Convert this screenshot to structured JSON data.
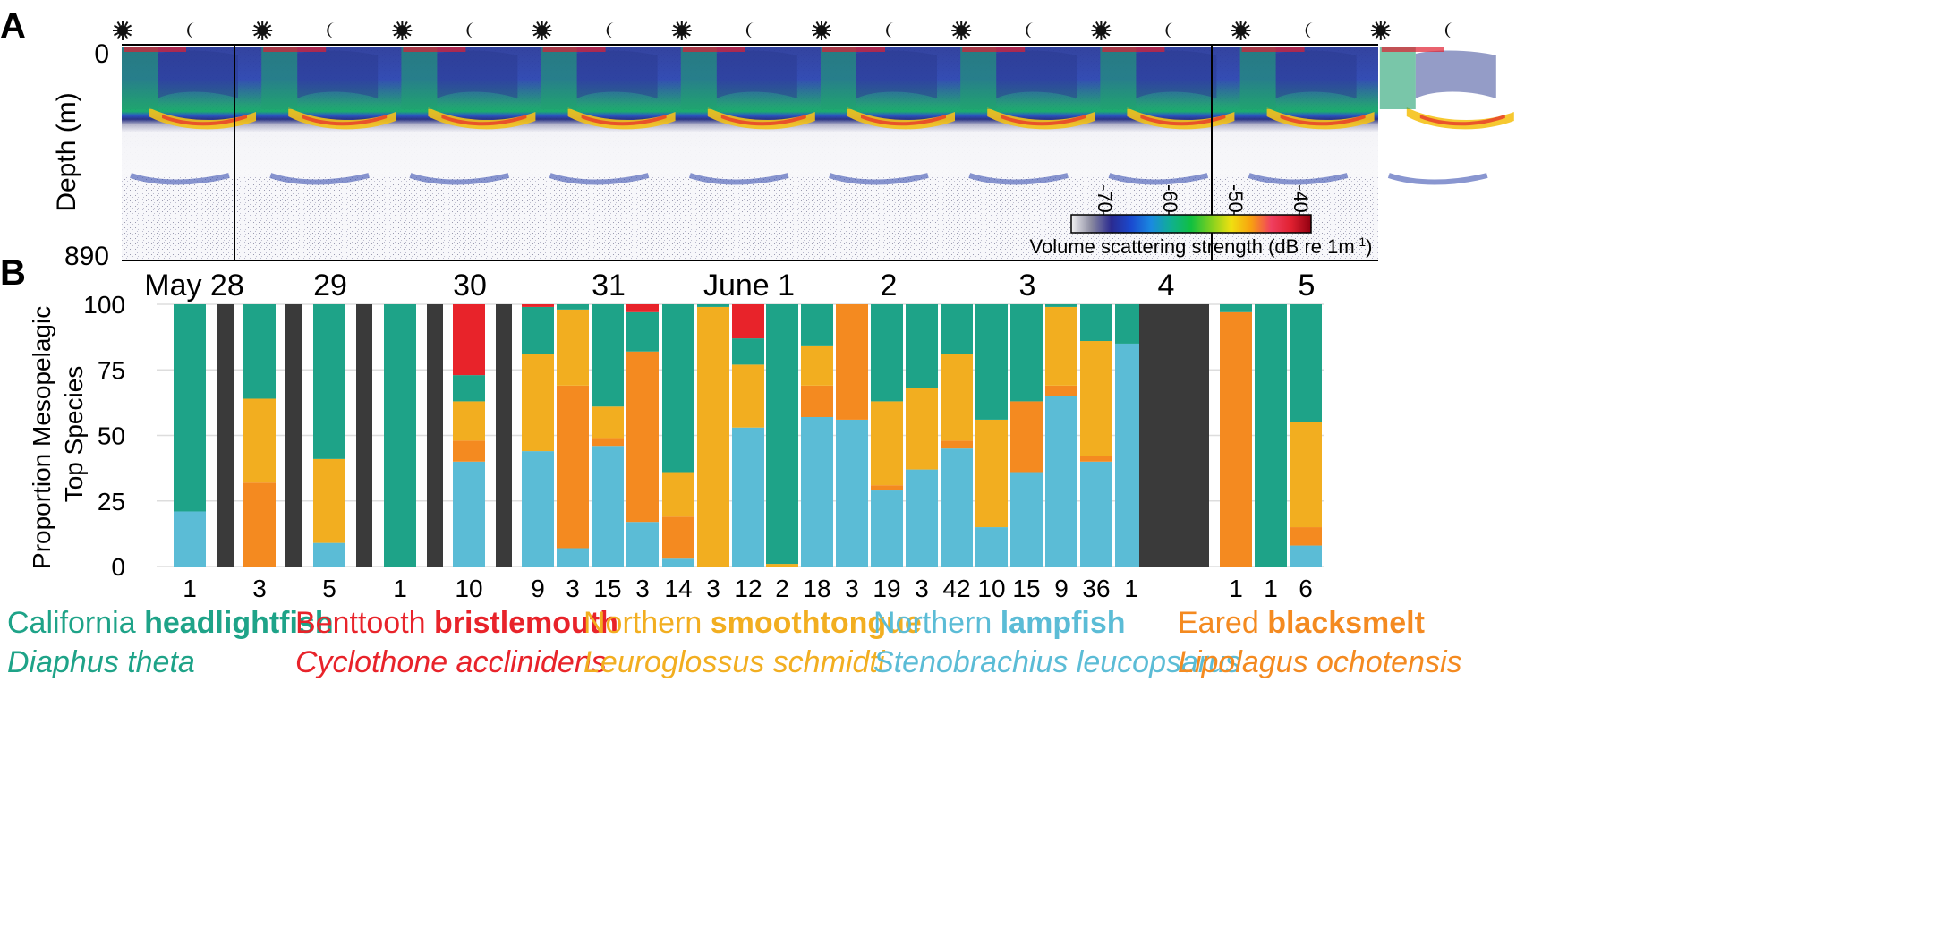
{
  "panel_a": {
    "label": "A",
    "ylabel": "Depth (m)",
    "depth_top": "0",
    "depth_bottom": "890",
    "cycle_icons": [
      "sun-icon",
      "moon-icon",
      "sun-icon",
      "moon-icon",
      "sun-icon",
      "moon-icon",
      "sun-icon",
      "moon-icon",
      "sun-icon",
      "moon-icon",
      "sun-icon",
      "moon-icon",
      "sun-icon",
      "moon-icon",
      "sun-icon",
      "moon-icon",
      "sun-icon",
      "moon-icon",
      "sun-icon",
      "moon-icon"
    ],
    "colorbar": {
      "ticks": [
        "-70",
        "-60",
        "-50",
        "-40"
      ],
      "label": "Volume scattering strength (dB re 1m",
      "label_sup": "-1",
      "label_end": ")",
      "colors": [
        "#f2f2f2",
        "#8a8aa0",
        "#2a2a90",
        "#1a4ad0",
        "#1a8ae0",
        "#10b090",
        "#10c040",
        "#80d020",
        "#f0e010",
        "#f8a010",
        "#f04060",
        "#e02030",
        "#900010"
      ]
    }
  },
  "panel_b": {
    "label": "B",
    "ylabel_line1": "Proportion Mesopelagic",
    "ylabel_line2": "Top Species",
    "yticks": [
      "0",
      "25",
      "50",
      "75",
      "100"
    ],
    "dates": [
      "May 28",
      "29",
      "30",
      "31",
      "June 1",
      "2",
      "3",
      "4",
      "5"
    ]
  },
  "chart_data": {
    "type": "bar",
    "stacked": true,
    "y_range": [
      0,
      100
    ],
    "ylabel": "Proportion Mesopelagic Top Species",
    "dates": [
      "May 28",
      "29",
      "30",
      "31",
      "June 1",
      "2",
      "3",
      "4",
      "5"
    ],
    "series": [
      {
        "name": "Northern lampfish",
        "color": "#5bbcd6"
      },
      {
        "name": "Eared blacksmelt",
        "color": "#f48a20"
      },
      {
        "name": "Northern smoothtongue",
        "color": "#f2ae20"
      },
      {
        "name": "California headlightfish",
        "color": "#1ea388"
      },
      {
        "name": "Benttooth bristlemouth",
        "color": "#e8232a"
      }
    ],
    "no_data_color": "#3a3a3a",
    "bars": [
      {
        "n": "1",
        "no_data": false,
        "values": [
          21,
          0,
          0,
          79,
          0
        ]
      },
      {
        "n": "",
        "no_data": true,
        "values": [
          0,
          0,
          0,
          0,
          0
        ]
      },
      {
        "n": "3",
        "no_data": false,
        "values": [
          0,
          32,
          32,
          36,
          0
        ]
      },
      {
        "n": "",
        "no_data": true,
        "values": [
          0,
          0,
          0,
          0,
          0
        ]
      },
      {
        "n": "5",
        "no_data": false,
        "values": [
          9,
          0,
          32,
          59,
          0
        ]
      },
      {
        "n": "",
        "no_data": true,
        "values": [
          0,
          0,
          0,
          0,
          0
        ]
      },
      {
        "n": "1",
        "no_data": false,
        "values": [
          0,
          0,
          0,
          100,
          0
        ]
      },
      {
        "n": "",
        "no_data": true,
        "values": [
          0,
          0,
          0,
          0,
          0
        ]
      },
      {
        "n": "10",
        "no_data": false,
        "values": [
          40,
          8,
          15,
          10,
          27
        ]
      },
      {
        "n": "",
        "no_data": true,
        "values": [
          0,
          0,
          0,
          0,
          0
        ]
      },
      {
        "n": "9",
        "no_data": false,
        "values": [
          44,
          0,
          37,
          18,
          1
        ]
      },
      {
        "n": "3",
        "no_data": false,
        "values": [
          7,
          62,
          29,
          2,
          0
        ]
      },
      {
        "n": "15",
        "no_data": false,
        "values": [
          46,
          3,
          12,
          39,
          0
        ]
      },
      {
        "n": "3",
        "no_data": false,
        "values": [
          17,
          65,
          0,
          15,
          3
        ]
      },
      {
        "n": "14",
        "no_data": false,
        "values": [
          3,
          16,
          17,
          64,
          0
        ]
      },
      {
        "n": "3",
        "no_data": false,
        "values": [
          0,
          0,
          99,
          1,
          0
        ]
      },
      {
        "n": "12",
        "no_data": false,
        "values": [
          53,
          0,
          24,
          10,
          13
        ]
      },
      {
        "n": "2",
        "no_data": false,
        "values": [
          0,
          0,
          1,
          99,
          0
        ]
      },
      {
        "n": "18",
        "no_data": false,
        "values": [
          57,
          12,
          15,
          16,
          0
        ]
      },
      {
        "n": "3",
        "no_data": false,
        "values": [
          56,
          44,
          0,
          0,
          0
        ]
      },
      {
        "n": "19",
        "no_data": false,
        "values": [
          29,
          2,
          32,
          37,
          0
        ]
      },
      {
        "n": "3",
        "no_data": false,
        "values": [
          37,
          0,
          31,
          32,
          0
        ]
      },
      {
        "n": "42",
        "no_data": false,
        "values": [
          45,
          3,
          33,
          19,
          0
        ]
      },
      {
        "n": "10",
        "no_data": false,
        "values": [
          15,
          0,
          41,
          44,
          0
        ]
      },
      {
        "n": "15",
        "no_data": false,
        "values": [
          36,
          27,
          0,
          37,
          0
        ]
      },
      {
        "n": "9",
        "no_data": false,
        "values": [
          65,
          4,
          30,
          1,
          0
        ]
      },
      {
        "n": "36",
        "no_data": false,
        "values": [
          40,
          2,
          44,
          14,
          0
        ]
      },
      {
        "n": "1",
        "no_data": false,
        "values": [
          85,
          0,
          0,
          15,
          0
        ]
      },
      {
        "n": "",
        "no_data": true,
        "values": [
          0,
          0,
          0,
          0,
          0
        ]
      },
      {
        "n": "",
        "no_data": true,
        "values": [
          0,
          0,
          0,
          0,
          0
        ]
      },
      {
        "n": "1",
        "no_data": false,
        "values": [
          0,
          97,
          0,
          3,
          0
        ]
      },
      {
        "n": "1",
        "no_data": false,
        "values": [
          0,
          0,
          0,
          100,
          0
        ]
      },
      {
        "n": "6",
        "no_data": false,
        "values": [
          8,
          7,
          40,
          45,
          0
        ]
      }
    ]
  },
  "legend": [
    {
      "common_prefix": "California ",
      "common_bold": "headlightfish",
      "latin": "Diaphus theta",
      "color": "#1ea388"
    },
    {
      "common_prefix": "Benttooth ",
      "common_bold": "bristlemouth",
      "latin": "Cyclothone acclinidens",
      "color": "#e8232a"
    },
    {
      "common_prefix": "Northern ",
      "common_bold": "smoothtongue",
      "latin": "Leuroglossus schmidti",
      "color": "#f2ae20"
    },
    {
      "common_prefix": "Northern ",
      "common_bold": "lampfish",
      "latin": "Stenobrachius leucopsarus",
      "color": "#5bbcd6"
    },
    {
      "common_prefix": "Eared ",
      "common_bold": "blacksmelt",
      "latin": "Lipolagus ochotensis",
      "color": "#f48a20"
    }
  ]
}
